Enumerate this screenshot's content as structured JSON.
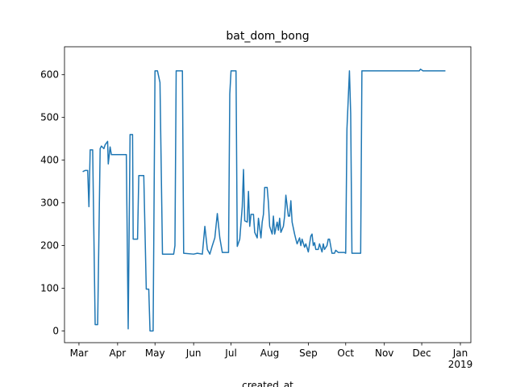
{
  "chart_data": {
    "type": "line",
    "title": "bat_dom_bong",
    "x_label": "created_at",
    "x": [
      62,
      64,
      66,
      67,
      68,
      70,
      72,
      74,
      76,
      77,
      79,
      80,
      82,
      82.5,
      84,
      85,
      97,
      98.5,
      100,
      102,
      102.5,
      106,
      107,
      111,
      113,
      115,
      116,
      118.5,
      120,
      122,
      124,
      126,
      135,
      136,
      137,
      142,
      143,
      151,
      154,
      158,
      160,
      162,
      164,
      166,
      168,
      170,
      172,
      174,
      179,
      180,
      181,
      185,
      186,
      188,
      190,
      191,
      192,
      194,
      195,
      196,
      197,
      199,
      200,
      202,
      203,
      205,
      206,
      207,
      208,
      210,
      211,
      212,
      214,
      215,
      216,
      218,
      219,
      220,
      221,
      223,
      224,
      225,
      227,
      228,
      229,
      230,
      232,
      233,
      234,
      236,
      237,
      238,
      240,
      241,
      242,
      243,
      245,
      246,
      247,
      248,
      249,
      251,
      252,
      254,
      255,
      256,
      258,
      259,
      260,
      262,
      264,
      265,
      267,
      272,
      273,
      274,
      276,
      277,
      278,
      285,
      286,
      332,
      333,
      335,
      353
    ],
    "values": [
      373,
      376,
      376,
      291,
      424,
      424,
      15,
      15,
      427,
      433,
      427,
      436,
      444,
      391,
      431,
      413,
      413,
      5,
      460,
      460,
      215,
      215,
      364,
      364,
      98,
      98,
      0,
      0,
      609,
      609,
      582,
      180,
      180,
      200,
      609,
      609,
      182,
      180,
      182,
      180,
      245,
      191,
      180,
      200,
      218,
      275,
      218,
      184,
      184,
      555,
      609,
      609,
      198,
      215,
      291,
      378,
      258,
      255,
      327,
      245,
      273,
      273,
      231,
      218,
      264,
      218,
      255,
      273,
      336,
      336,
      300,
      245,
      227,
      269,
      227,
      255,
      236,
      264,
      231,
      245,
      269,
      318,
      269,
      269,
      305,
      255,
      227,
      215,
      204,
      218,
      200,
      215,
      196,
      204,
      195,
      185,
      222,
      227,
      200,
      207,
      191,
      191,
      204,
      185,
      204,
      191,
      200,
      215,
      215,
      182,
      182,
      189,
      184,
      184,
      182,
      473,
      609,
      509,
      182,
      182,
      609,
      609,
      613,
      609,
      609
    ],
    "color": "#1f77b4",
    "xlim": [
      47.4,
      373.4
    ],
    "xticks": [
      {
        "value": 59,
        "label": "Mar"
      },
      {
        "value": 90,
        "label": "Apr"
      },
      {
        "value": 120,
        "label": "May"
      },
      {
        "value": 151,
        "label": "Jun"
      },
      {
        "value": 181,
        "label": "Jul"
      },
      {
        "value": 212,
        "label": "Aug"
      },
      {
        "value": 243,
        "label": "Sep"
      },
      {
        "value": 273,
        "label": "Oct"
      },
      {
        "value": 304,
        "label": "Nov"
      },
      {
        "value": 334,
        "label": "Dec"
      },
      {
        "value": 365,
        "label": "Jan\n2019"
      }
    ],
    "ylim": [
      -27.3,
      665.5
    ],
    "yticks": [
      0,
      100,
      200,
      300,
      400,
      500,
      600
    ],
    "grid": false
  }
}
